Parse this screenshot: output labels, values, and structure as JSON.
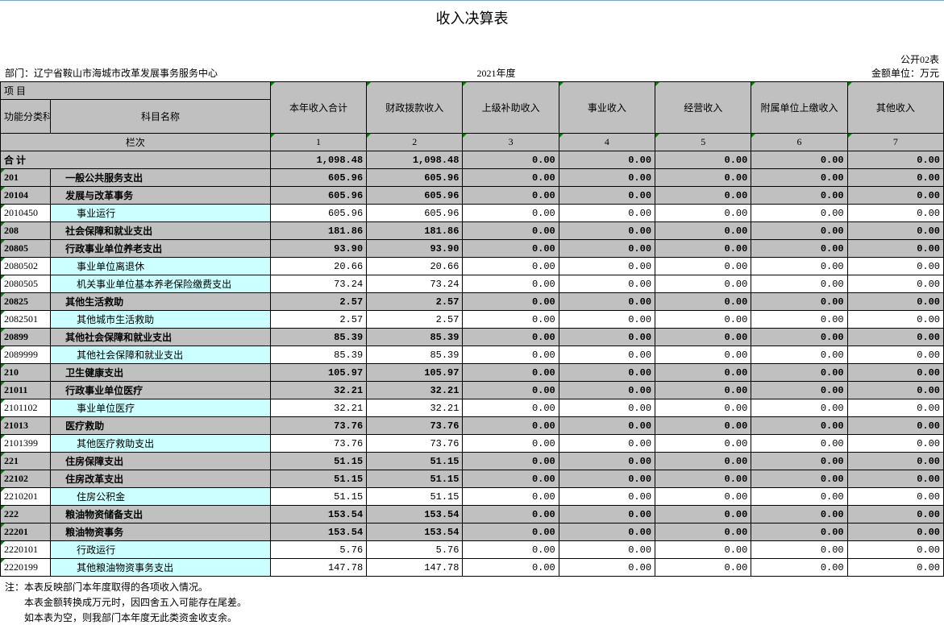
{
  "title": "收入决算表",
  "form_no": "公开02表",
  "dept_label": "部门：",
  "dept_name": "辽宁省鞍山市海城市改革发展事务服务中心",
  "year": "2021年度",
  "unit": "金额单位：万元",
  "headers": {
    "xm": "项                                                目",
    "code": "功能分类科目编码",
    "name": "科目名称",
    "cols": [
      "本年收入合计",
      "财政拨款收入",
      "上级补助收入",
      "事业收入",
      "经营收入",
      "附属单位上缴收入",
      "其他收入"
    ],
    "lanci": "栏次",
    "nums": [
      "1",
      "2",
      "3",
      "4",
      "5",
      "6",
      "7"
    ],
    "heji": "合                                                计"
  },
  "rows": [
    {
      "code": "",
      "name": "合                                                计",
      "v": [
        "1,098.48",
        "1,098.48",
        "0.00",
        "0.00",
        "0.00",
        "0.00",
        "0.00"
      ],
      "style": "sum",
      "bold": true
    },
    {
      "code": "201",
      "name": "一般公共服务支出",
      "v": [
        "605.96",
        "605.96",
        "0.00",
        "0.00",
        "0.00",
        "0.00",
        "0.00"
      ],
      "style": "gray",
      "bold": true
    },
    {
      "code": "20104",
      "name": "发展与改革事务",
      "v": [
        "605.96",
        "605.96",
        "0.00",
        "0.00",
        "0.00",
        "0.00",
        "0.00"
      ],
      "style": "gray",
      "bold": true
    },
    {
      "code": "2010450",
      "name": "事业运行",
      "v": [
        "605.96",
        "605.96",
        "0.00",
        "0.00",
        "0.00",
        "0.00",
        "0.00"
      ],
      "style": "cyan",
      "indent": 2
    },
    {
      "code": "208",
      "name": "社会保障和就业支出",
      "v": [
        "181.86",
        "181.86",
        "0.00",
        "0.00",
        "0.00",
        "0.00",
        "0.00"
      ],
      "style": "gray",
      "bold": true
    },
    {
      "code": "20805",
      "name": "行政事业单位养老支出",
      "v": [
        "93.90",
        "93.90",
        "0.00",
        "0.00",
        "0.00",
        "0.00",
        "0.00"
      ],
      "style": "gray",
      "bold": true
    },
    {
      "code": "2080502",
      "name": "事业单位离退休",
      "v": [
        "20.66",
        "20.66",
        "0.00",
        "0.00",
        "0.00",
        "0.00",
        "0.00"
      ],
      "style": "cyan",
      "indent": 2
    },
    {
      "code": "2080505",
      "name": "机关事业单位基本养老保险缴费支出",
      "v": [
        "73.24",
        "73.24",
        "0.00",
        "0.00",
        "0.00",
        "0.00",
        "0.00"
      ],
      "style": "cyan",
      "indent": 2
    },
    {
      "code": "20825",
      "name": "其他生活救助",
      "v": [
        "2.57",
        "2.57",
        "0.00",
        "0.00",
        "0.00",
        "0.00",
        "0.00"
      ],
      "style": "gray",
      "bold": true
    },
    {
      "code": "2082501",
      "name": "其他城市生活救助",
      "v": [
        "2.57",
        "2.57",
        "0.00",
        "0.00",
        "0.00",
        "0.00",
        "0.00"
      ],
      "style": "cyan",
      "indent": 2
    },
    {
      "code": "20899",
      "name": "其他社会保障和就业支出",
      "v": [
        "85.39",
        "85.39",
        "0.00",
        "0.00",
        "0.00",
        "0.00",
        "0.00"
      ],
      "style": "gray",
      "bold": true
    },
    {
      "code": "2089999",
      "name": "其他社会保障和就业支出",
      "v": [
        "85.39",
        "85.39",
        "0.00",
        "0.00",
        "0.00",
        "0.00",
        "0.00"
      ],
      "style": "cyan",
      "indent": 2
    },
    {
      "code": "210",
      "name": "卫生健康支出",
      "v": [
        "105.97",
        "105.97",
        "0.00",
        "0.00",
        "0.00",
        "0.00",
        "0.00"
      ],
      "style": "gray",
      "bold": true
    },
    {
      "code": "21011",
      "name": "行政事业单位医疗",
      "v": [
        "32.21",
        "32.21",
        "0.00",
        "0.00",
        "0.00",
        "0.00",
        "0.00"
      ],
      "style": "gray",
      "bold": true
    },
    {
      "code": "2101102",
      "name": "事业单位医疗",
      "v": [
        "32.21",
        "32.21",
        "0.00",
        "0.00",
        "0.00",
        "0.00",
        "0.00"
      ],
      "style": "cyan",
      "indent": 2
    },
    {
      "code": "21013",
      "name": "医疗救助",
      "v": [
        "73.76",
        "73.76",
        "0.00",
        "0.00",
        "0.00",
        "0.00",
        "0.00"
      ],
      "style": "gray",
      "bold": true
    },
    {
      "code": "2101399",
      "name": "其他医疗救助支出",
      "v": [
        "73.76",
        "73.76",
        "0.00",
        "0.00",
        "0.00",
        "0.00",
        "0.00"
      ],
      "style": "cyan",
      "indent": 2
    },
    {
      "code": "221",
      "name": "住房保障支出",
      "v": [
        "51.15",
        "51.15",
        "0.00",
        "0.00",
        "0.00",
        "0.00",
        "0.00"
      ],
      "style": "gray",
      "bold": true
    },
    {
      "code": "22102",
      "name": "住房改革支出",
      "v": [
        "51.15",
        "51.15",
        "0.00",
        "0.00",
        "0.00",
        "0.00",
        "0.00"
      ],
      "style": "gray",
      "bold": true
    },
    {
      "code": "2210201",
      "name": "住房公积金",
      "v": [
        "51.15",
        "51.15",
        "0.00",
        "0.00",
        "0.00",
        "0.00",
        "0.00"
      ],
      "style": "cyan",
      "indent": 2
    },
    {
      "code": "222",
      "name": "粮油物资储备支出",
      "v": [
        "153.54",
        "153.54",
        "0.00",
        "0.00",
        "0.00",
        "0.00",
        "0.00"
      ],
      "style": "gray",
      "bold": true
    },
    {
      "code": "22201",
      "name": "粮油物资事务",
      "v": [
        "153.54",
        "153.54",
        "0.00",
        "0.00",
        "0.00",
        "0.00",
        "0.00"
      ],
      "style": "gray",
      "bold": true
    },
    {
      "code": "2220101",
      "name": "行政运行",
      "v": [
        "5.76",
        "5.76",
        "0.00",
        "0.00",
        "0.00",
        "0.00",
        "0.00"
      ],
      "style": "cyan",
      "indent": 2
    },
    {
      "code": "2220199",
      "name": "其他粮油物资事务支出",
      "v": [
        "147.78",
        "147.78",
        "0.00",
        "0.00",
        "0.00",
        "0.00",
        "0.00"
      ],
      "style": "cyan",
      "indent": 2
    }
  ],
  "notes": [
    "注：本表反映部门本年度取得的各项收入情况。",
    "本表金额转换成万元时，因四舍五入可能存在尾差。",
    "如本表为空，则我部门本年度无此类资金收支余。"
  ]
}
